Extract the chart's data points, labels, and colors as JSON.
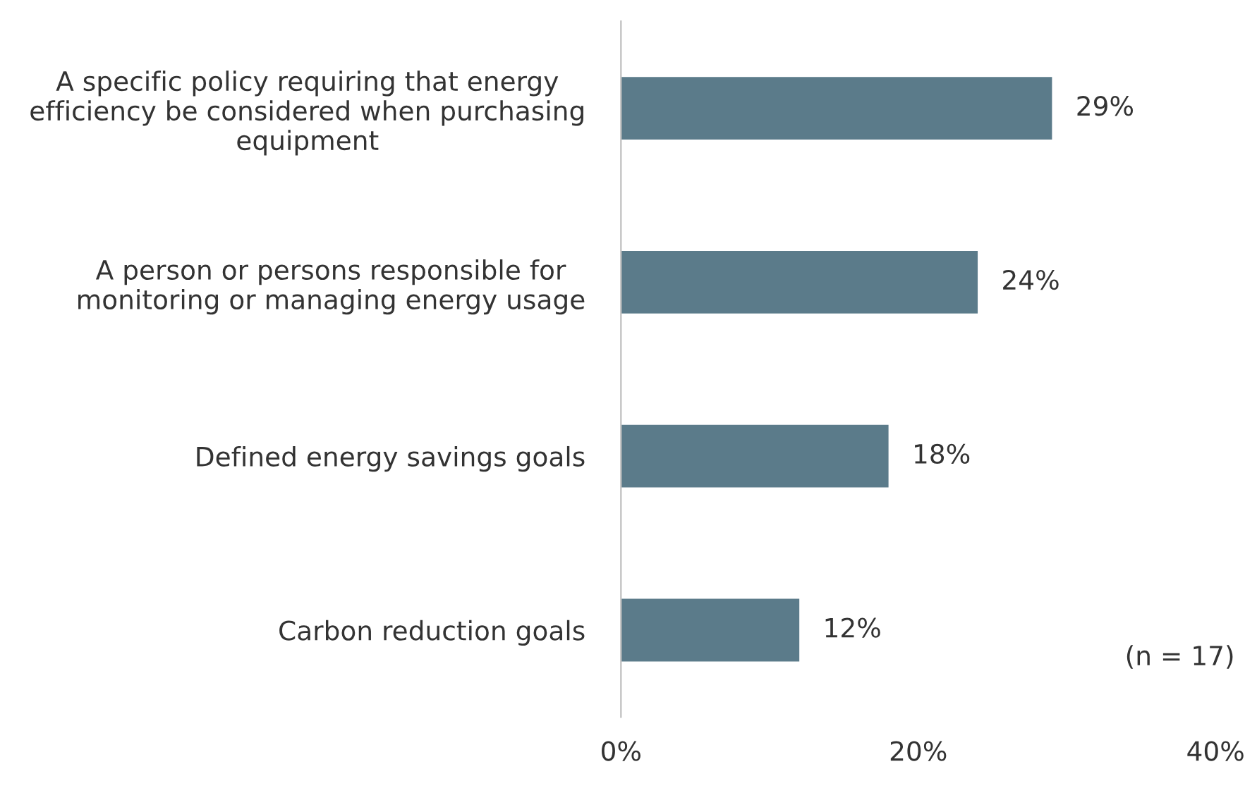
{
  "chart_data": {
    "type": "bar",
    "orientation": "horizontal",
    "categories": [
      "A specific policy requiring that energy\nefficiency be considered when purchasing\nequipment",
      "A person or persons responsible for\nmonitoring or managing energy usage",
      "Defined energy savings goals",
      "Carbon reduction goals"
    ],
    "values": [
      29,
      24,
      18,
      12
    ],
    "color": "#5b7b8a",
    "value_labels": [
      "29%",
      "24%",
      "18%",
      "12%"
    ],
    "xlim": [
      0,
      40
    ],
    "xticks": [
      {
        "value": 0,
        "label": "0%"
      },
      {
        "value": 20,
        "label": "20%"
      },
      {
        "value": 40,
        "label": "40%"
      }
    ],
    "grid": false,
    "legend": false,
    "annotations": [
      "(n = 17)"
    ]
  }
}
